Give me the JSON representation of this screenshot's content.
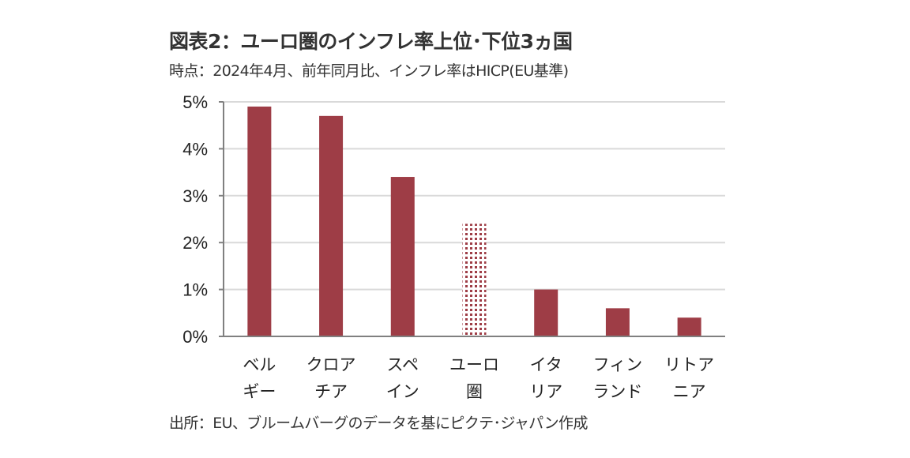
{
  "chart_data": {
    "type": "bar",
    "title": "図表2：ユーロ圏のインフレ率上位･下位3ヵ国",
    "subtitle": "時点：2024年4月、前年同月比、インフレ率はHICP(EU基準)",
    "source": "出所：EU、ブルームバーグのデータを基にピクテ･ジャパン作成",
    "categories": [
      [
        "ベル",
        "ギー"
      ],
      [
        "クロア",
        "チア"
      ],
      [
        "スペ",
        "イン"
      ],
      [
        "ユーロ",
        "圏"
      ],
      [
        "イタ",
        "リア"
      ],
      [
        "フィン",
        "ランド"
      ],
      [
        "リトア",
        "ニア"
      ]
    ],
    "values": [
      4.9,
      4.7,
      3.4,
      2.4,
      1.0,
      0.6,
      0.4
    ],
    "highlight_index": 3,
    "xlabel": "",
    "ylabel": "",
    "ylim": [
      0,
      5
    ],
    "yticks": [
      0,
      1,
      2,
      3,
      4,
      5
    ],
    "ytick_labels": [
      "0%",
      "1%",
      "2%",
      "3%",
      "4%",
      "5%"
    ],
    "grid": true,
    "legend": "none",
    "colors": {
      "bar": "#9e3d46",
      "grid": "#d9d9d9",
      "axis": "#808080"
    }
  }
}
